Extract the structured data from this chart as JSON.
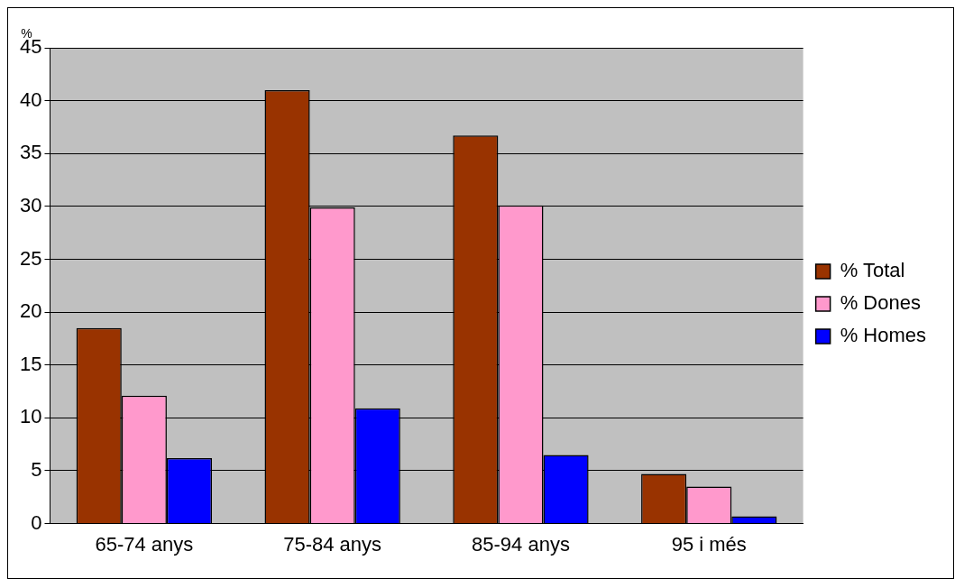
{
  "chart_data": {
    "type": "bar",
    "ylabel": "%",
    "categories": [
      "65-74 anys",
      "75-84 anys",
      "85-94 anys",
      "95 i més"
    ],
    "series": [
      {
        "name": "% Total",
        "color": "#993300",
        "values": [
          18.5,
          41.0,
          36.7,
          4.7
        ]
      },
      {
        "name": "% Dones",
        "color": "#ff99cc",
        "values": [
          12.1,
          29.9,
          30.1,
          3.5
        ]
      },
      {
        "name": "% Homes",
        "color": "#0000ff",
        "values": [
          6.2,
          10.9,
          6.5,
          0.7
        ]
      }
    ],
    "ylim": [
      0,
      45
    ],
    "yticks": [
      0,
      5,
      10,
      15,
      20,
      25,
      30,
      35,
      40,
      45
    ],
    "grid": "y",
    "legend": "right"
  }
}
